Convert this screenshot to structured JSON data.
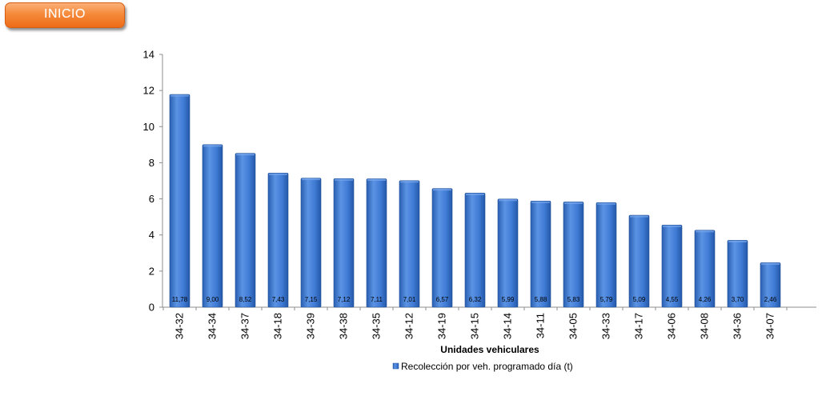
{
  "nav": {
    "inicio_label": "INICIO"
  },
  "colors": {
    "bar": "#3d78d6",
    "bar_dark": "#2458a8",
    "bar_light": "#6aa0ea",
    "button": "#f47c2c"
  },
  "chart_data": {
    "type": "bar",
    "categories": [
      "34-32",
      "34-34",
      "34-37",
      "34-18",
      "34-39",
      "34-38",
      "34-35",
      "34-12",
      "34-19",
      "34-15",
      "34-14",
      "34-11",
      "34-05",
      "34-33",
      "34-17",
      "34-06",
      "34-08",
      "34-36",
      "34-07"
    ],
    "series": [
      {
        "name": "Recolección por veh. programado día (t)",
        "values": [
          11.78,
          9.0,
          8.52,
          7.43,
          7.15,
          7.12,
          7.11,
          7.01,
          6.57,
          6.32,
          5.99,
          5.88,
          5.83,
          5.79,
          5.09,
          4.55,
          4.26,
          3.7,
          2.46
        ],
        "data_labels": [
          "11,78",
          "9,00",
          "8,52",
          "7,43",
          "7,15",
          "7,12",
          "7,11",
          "7,01",
          "6,57",
          "6,32",
          "5,99",
          "5,88",
          "5,83",
          "5,79",
          "5,09",
          "4,55",
          "4,26",
          "3,70",
          "2,46"
        ]
      }
    ],
    "xlabel": "Unidades vehiculares",
    "ylabel": "",
    "ylim": [
      0,
      14
    ],
    "yticks": [
      0,
      2,
      4,
      6,
      8,
      10,
      12,
      14
    ],
    "legend_position": "bottom",
    "grid": false
  }
}
